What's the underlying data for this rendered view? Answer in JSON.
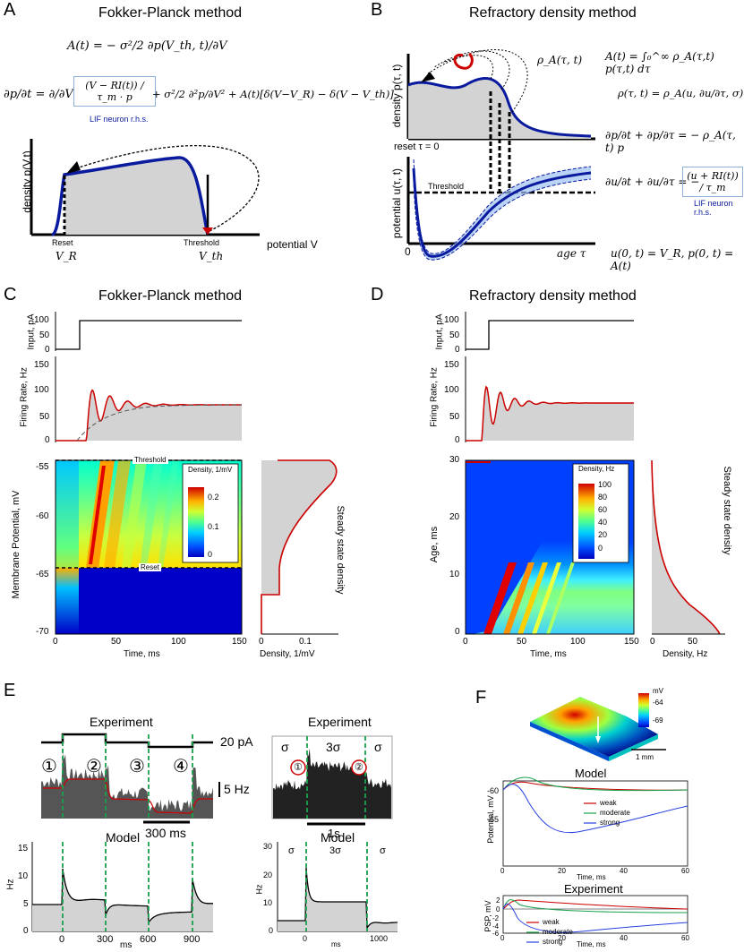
{
  "panels": {
    "A": {
      "letter": "A",
      "title": "Fokker-Planck method",
      "eq1": "A(t) = − σ²/2 ∂p(V_th, t)/∂V",
      "eq2_lhs": "∂p/∂t = ∂/∂V",
      "eq2_box": "(V − RI(t)) / τ_m · p",
      "eq2_rest": "+ σ²/2 ∂²p/∂V² + A(t)[δ(V−V_R) − δ(V − V_th)]",
      "lif_note": "LIF neuron r.h.s.",
      "ylabel": "density p(V,t)",
      "xlabel": "potential V",
      "reset_label": "Reset",
      "reset_sym": "V_R",
      "threshold_label": "Threshold",
      "threshold_sym": "V_th"
    },
    "B": {
      "letter": "B",
      "title": "Refractory density method",
      "rho_label": "ρ_A(τ, t)",
      "top_ylabel": "density p(τ, t)",
      "reset_tau": "reset τ = 0",
      "bottom_ylabel": "potential u(τ, t)",
      "threshold": "Threshold",
      "zero": "0",
      "xlabel": "age τ",
      "eq_a": "A(t) = ∫₀^∞ ρ_A(τ,t) p(τ,t) dτ",
      "eq_rho": "ρ(τ, t) = ρ_A(u, ∂u/∂τ, σ)",
      "eq_p": "∂p/∂t + ∂p/∂τ = − ρ_A(τ, t) p",
      "eq_u_lhs": "∂u/∂t + ∂u/∂τ = −",
      "eq_u_box": "(u + RI(t)) / τ_m",
      "lif_note": "LIF neuron r.h.s.",
      "eq_bc": "u(0, t) = V_R,  p(0, t) = A(t)"
    },
    "C": {
      "letter": "C",
      "title": "Fokker-Planck method",
      "input_ylabel": "Input, pA",
      "input_ticks": [
        "0",
        "50",
        "100"
      ],
      "rate_ylabel": "Firing Rate, Hz",
      "rate_ticks": [
        "0",
        "50",
        "100",
        "150"
      ],
      "map_ylabel": "Membrane Potential, mV",
      "map_yticks": [
        "-55",
        "-60",
        "-65",
        "-70"
      ],
      "map_xlabel": "Time, ms",
      "map_xticks": [
        "0",
        "50",
        "100",
        "150"
      ],
      "threshold": "Threshold",
      "reset": "Reset",
      "cbar_title": "Density, 1/mV",
      "cbar_ticks": [
        "0.2",
        "0.1",
        "0"
      ],
      "ss_label": "Steady state density",
      "ss_xlabel": "Density, 1/mV",
      "ss_xticks": [
        "0",
        "0.1"
      ]
    },
    "D": {
      "letter": "D",
      "title": "Refractory density method",
      "input_ylabel": "Input, pA",
      "input_ticks": [
        "0",
        "50",
        "100"
      ],
      "rate_ylabel": "Firing Rate, Hz",
      "rate_ticks": [
        "0",
        "50",
        "100",
        "150"
      ],
      "map_ylabel": "Age, ms",
      "map_yticks": [
        "30",
        "20",
        "10",
        "0"
      ],
      "map_xlabel": "Time, ms",
      "map_xticks": [
        "0",
        "50",
        "100",
        "150"
      ],
      "cbar_title": "Density, Hz",
      "cbar_ticks": [
        "100",
        "80",
        "60",
        "40",
        "20",
        "0"
      ],
      "ss_label": "Steady state density",
      "ss_xlabel": "Density, Hz",
      "ss_xticks": [
        "0",
        "50"
      ]
    },
    "E": {
      "letter": "E",
      "left_title": "Experiment",
      "current": "20 pA",
      "markers": [
        "①",
        "②",
        "③",
        "④"
      ],
      "rate_scale": "5 Hz",
      "time_scale": "300 ms",
      "left_model": "Model",
      "left_yticks": [
        "15",
        "10",
        "5",
        "0"
      ],
      "left_xticks": [
        "0",
        "300",
        "600",
        "900"
      ],
      "xlabel": "ms",
      "ylabel": "Hz",
      "right_title": "Experiment",
      "sigma_labels": [
        "σ",
        "3σ",
        "σ"
      ],
      "right_markers": [
        "①",
        "②"
      ],
      "right_scale": "1s",
      "right_model": "Model",
      "right_yticks": [
        "30",
        "20",
        "10",
        "0"
      ],
      "right_xticks": [
        "0",
        "1000"
      ]
    },
    "F": {
      "letter": "F",
      "cbar_unit": "mV",
      "cbar_ticks": [
        "-64",
        "-69"
      ],
      "scale": "1 mm",
      "model_title": "Model",
      "model_ylabel": "Potential, mV",
      "model_yticks": [
        "-60",
        "-65"
      ],
      "xticks": [
        "0",
        "20",
        "40",
        "60"
      ],
      "xlabel": "Time, ms",
      "exp_title": "Experiment",
      "exp_ylabel": "PSP, mV",
      "exp_yticks": [
        "2",
        "0",
        "-2",
        "-4",
        "-6"
      ],
      "legend": [
        "weak",
        "moderate",
        "strong"
      ]
    }
  },
  "colors": {
    "red": "#cc0000",
    "blue": "#0a1a9e",
    "gray": "#d3d3d3",
    "lif_box": "#8fb3dd",
    "green_dash": "#16a34a"
  }
}
